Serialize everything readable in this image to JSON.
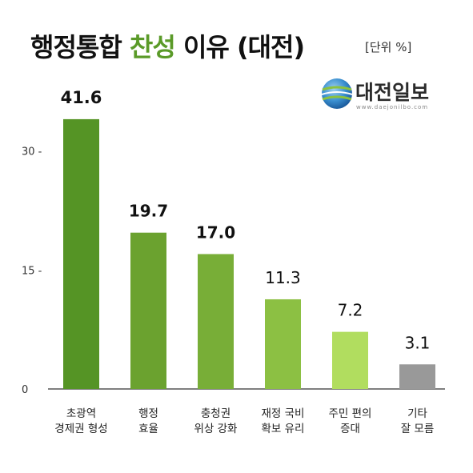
{
  "header": {
    "title_part1": "행정통합",
    "title_accent": "찬성",
    "title_part2": "이유 (대전)",
    "unit": "[단위 %]"
  },
  "logo": {
    "name": "대전일보",
    "url": "www.daejonilbo.com",
    "icon": "globe-logo-icon"
  },
  "chart_data": {
    "type": "bar",
    "categories": [
      [
        "초광역",
        "경제권 형성"
      ],
      [
        "행정",
        "효율"
      ],
      [
        "충청권",
        "위상 강화"
      ],
      [
        "재정 국비",
        "확보 유리"
      ],
      [
        "주민 편의",
        "증대"
      ],
      [
        "기타",
        "잘 모름"
      ]
    ],
    "values": [
      41.6,
      19.7,
      17.0,
      11.3,
      7.2,
      3.1
    ],
    "value_labels": [
      "41.6",
      "19.7",
      "17.0",
      "11.3",
      "7.2",
      "3.1"
    ],
    "colors": [
      "#559425",
      "#6ba22f",
      "#78ae37",
      "#8cc043",
      "#b1dd5f",
      "#999999"
    ],
    "yticks": [
      "30",
      "15",
      "0"
    ],
    "ytick_values": [
      30,
      15,
      0
    ],
    "ylim": [
      0,
      35
    ]
  }
}
